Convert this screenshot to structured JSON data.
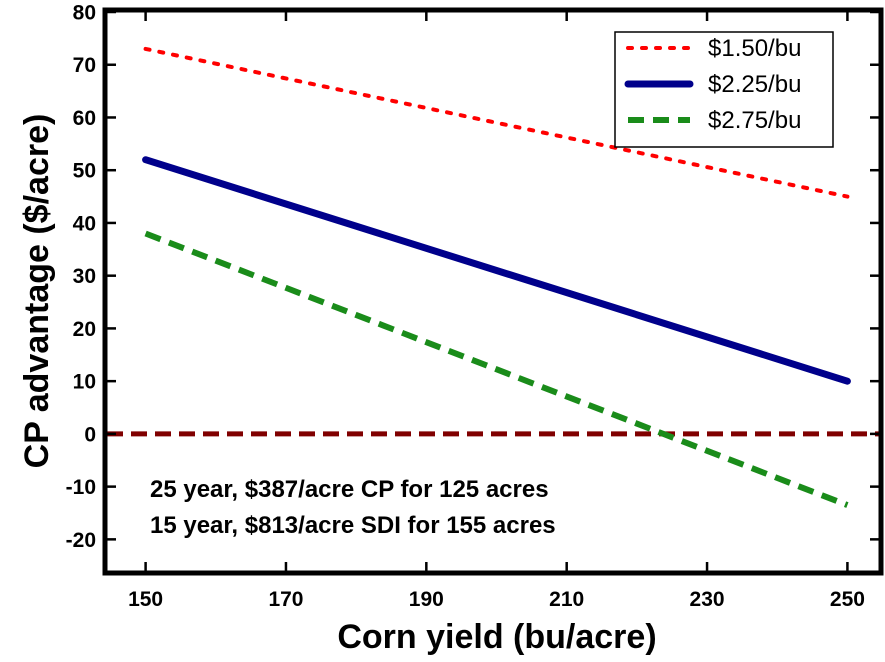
{
  "chart_data": {
    "type": "line",
    "xlabel": "Corn yield (bu/acre)",
    "ylabel": "CP advantage ($/acre)",
    "xlim": [
      144.5,
      254.5
    ],
    "ylim": [
      -26,
      80
    ],
    "xticks": [
      150,
      170,
      190,
      210,
      230,
      250
    ],
    "yticks": [
      -20,
      -10,
      0,
      10,
      20,
      30,
      40,
      50,
      60,
      70,
      80
    ],
    "grid": false,
    "legend_position": "top-right",
    "series": [
      {
        "name": "$1.50/bu",
        "color": "#ff0000",
        "style": "dotted",
        "x": [
          150,
          250
        ],
        "y": [
          73,
          45
        ]
      },
      {
        "name": "$2.25/bu",
        "color": "#00008b",
        "style": "solid",
        "x": [
          150,
          250
        ],
        "y": [
          52,
          10
        ]
      },
      {
        "name": "$2.75/bu",
        "color": "#1a8c1a",
        "style": "dashed",
        "x": [
          150,
          250
        ],
        "y": [
          38,
          -13.5
        ]
      }
    ],
    "reference_line": {
      "y": 0,
      "color": "#800000",
      "style": "dashed"
    },
    "annotations": [
      "25 year, $387/acre CP for 125 acres",
      "15 year, $813/acre SDI for 155 acres"
    ]
  }
}
